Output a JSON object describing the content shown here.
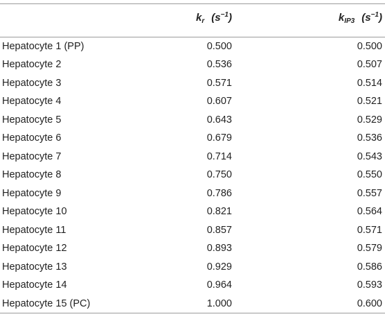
{
  "header": {
    "col1": "",
    "col2": {
      "symbol": "k",
      "sub": "r",
      "unit": "(s",
      "sup": "−1",
      "unit_close": ")"
    },
    "col3": {
      "symbol": "k",
      "sub": "IP3",
      "unit": "(s",
      "sup": "−1",
      "unit_close": ")"
    }
  },
  "rows": [
    {
      "name": "Hepatocyte 1 (PP)",
      "kr": "0.500",
      "kip3": "0.500"
    },
    {
      "name": "Hepatocyte 2",
      "kr": "0.536",
      "kip3": "0.507"
    },
    {
      "name": "Hepatocyte 3",
      "kr": "0.571",
      "kip3": "0.514"
    },
    {
      "name": "Hepatocyte 4",
      "kr": "0.607",
      "kip3": "0.521"
    },
    {
      "name": "Hepatocyte 5",
      "kr": "0.643",
      "kip3": "0.529"
    },
    {
      "name": "Hepatocyte 6",
      "kr": "0.679",
      "kip3": "0.536"
    },
    {
      "name": "Hepatocyte 7",
      "kr": "0.714",
      "kip3": "0.543"
    },
    {
      "name": "Hepatocyte 8",
      "kr": "0.750",
      "kip3": "0.550"
    },
    {
      "name": "Hepatocyte 9",
      "kr": "0.786",
      "kip3": "0.557"
    },
    {
      "name": "Hepatocyte 10",
      "kr": "0.821",
      "kip3": "0.564"
    },
    {
      "name": "Hepatocyte 11",
      "kr": "0.857",
      "kip3": "0.571"
    },
    {
      "name": "Hepatocyte 12",
      "kr": "0.893",
      "kip3": "0.579"
    },
    {
      "name": "Hepatocyte 13",
      "kr": "0.929",
      "kip3": "0.586"
    },
    {
      "name": "Hepatocyte 14",
      "kr": "0.964",
      "kip3": "0.593"
    },
    {
      "name": "Hepatocyte 15 (PC)",
      "kr": "1.000",
      "kip3": "0.600"
    }
  ]
}
